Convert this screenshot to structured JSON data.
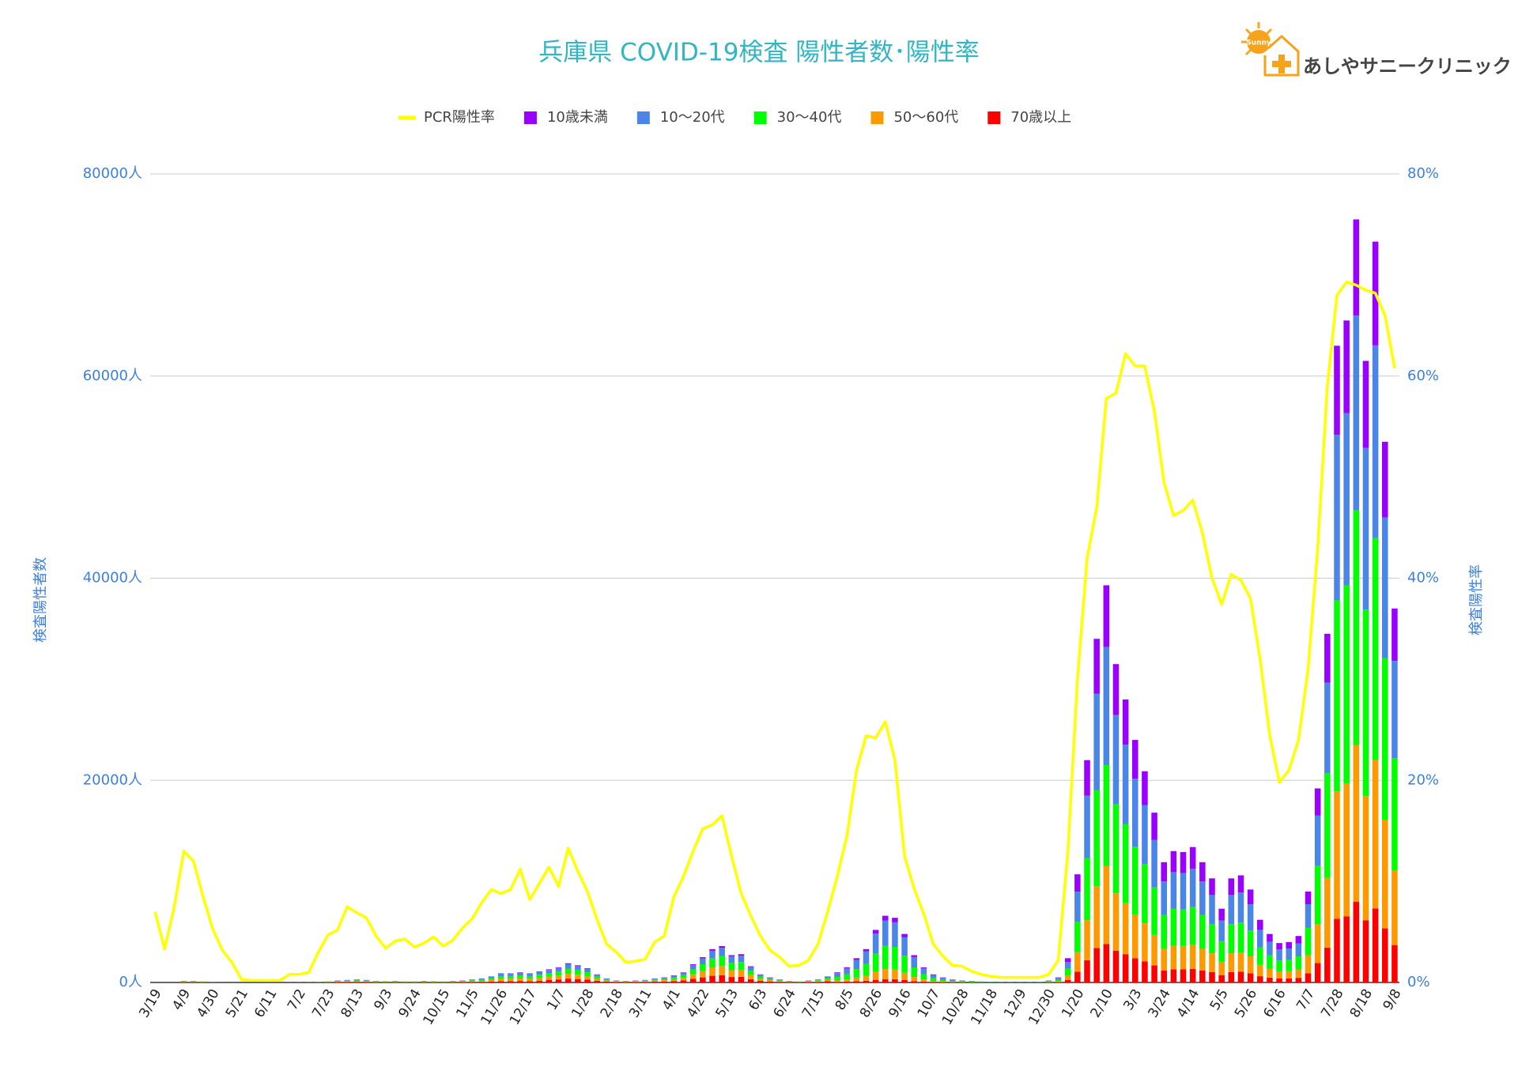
{
  "logo_mark": "Sunny",
  "logo_text": "あしやサニークリニック",
  "chart_data": {
    "type": "bar",
    "stacked": true,
    "grid": true,
    "legend": "top",
    "title": "兵庫県  COVID-19検査  陽性者数･陽性率",
    "ylabel": "検査陽性者数",
    "y2label": "検査陽性率",
    "ylim": [
      0,
      80000
    ],
    "yticks": [
      {
        "value": 0,
        "label": "0人"
      },
      {
        "value": 20000,
        "label": "20000人"
      },
      {
        "value": 40000,
        "label": "40000人"
      },
      {
        "value": 60000,
        "label": "60000人"
      },
      {
        "value": 80000,
        "label": "80000人"
      }
    ],
    "y2lim": [
      0,
      80
    ],
    "y2ticks": [
      {
        "value": 0,
        "label": "0%"
      },
      {
        "value": 20,
        "label": "20%"
      },
      {
        "value": 40,
        "label": "40%"
      },
      {
        "value": 60,
        "label": "60%"
      },
      {
        "value": 80,
        "label": "80%"
      }
    ],
    "categories": [
      "3/19",
      null,
      null,
      "4/9",
      null,
      null,
      "4/30",
      null,
      null,
      "5/21",
      null,
      null,
      "6/11",
      null,
      null,
      "7/2",
      null,
      null,
      "7/23",
      null,
      null,
      "8/13",
      null,
      null,
      "9/3",
      null,
      null,
      "9/24",
      null,
      null,
      "10/15",
      null,
      null,
      "11/5",
      null,
      null,
      "11/26",
      null,
      null,
      "12/17",
      null,
      null,
      "1/7",
      null,
      null,
      "1/28",
      null,
      null,
      "2/18",
      null,
      null,
      "3/11",
      null,
      null,
      "4/1",
      null,
      null,
      "4/22",
      null,
      null,
      "5/13",
      null,
      null,
      "6/3",
      null,
      null,
      "6/24",
      null,
      null,
      "7/15",
      null,
      null,
      "8/5",
      null,
      null,
      "8/26",
      null,
      null,
      "9/16",
      null,
      null,
      "10/7",
      null,
      null,
      "10/28",
      null,
      null,
      "11/18",
      null,
      null,
      "12/9",
      null,
      null,
      "12/30",
      null,
      null,
      "1/20",
      null,
      null,
      "2/10",
      null,
      null,
      "3/3",
      null,
      null,
      "3/24",
      null,
      null,
      "4/14",
      null,
      null,
      "5/5",
      null,
      null,
      "5/26",
      null,
      null,
      "6/16",
      null,
      null,
      "7/7",
      null,
      null,
      "7/28",
      null,
      null,
      "8/18",
      null,
      null,
      "9/8"
    ],
    "series": [
      {
        "name": "PCR陽性率",
        "color": "#ffff00",
        "type": "line",
        "axis": "y2",
        "values": [
          7.0,
          3.3,
          7.5,
          13.0,
          12.0,
          8.5,
          5.3,
          3.2,
          2.0,
          0.3,
          0.2,
          0.2,
          0.2,
          0.2,
          0.8,
          0.8,
          1.0,
          3.0,
          4.7,
          5.2,
          7.5,
          6.9,
          6.4,
          4.6,
          3.4,
          4.1,
          4.3,
          3.5,
          3.9,
          4.5,
          3.6,
          4.2,
          5.4,
          6.3,
          7.9,
          9.2,
          8.8,
          9.2,
          11.2,
          8.2,
          9.8,
          11.4,
          9.5,
          13.3,
          11.0,
          9.0,
          6.2,
          3.8,
          3.0,
          2.0,
          2.1,
          2.3,
          4.0,
          4.6,
          8.5,
          10.5,
          13.0,
          15.2,
          15.6,
          16.5,
          12.5,
          8.8,
          6.6,
          4.6,
          3.2,
          2.5,
          1.6,
          1.7,
          2.2,
          3.8,
          7.0,
          10.5,
          14.5,
          21.0,
          24.4,
          24.2,
          25.8,
          22.0,
          12.5,
          9.3,
          6.8,
          3.8,
          2.6,
          1.7,
          1.6,
          1.1,
          0.8,
          0.6,
          0.5,
          0.5,
          0.5,
          0.5,
          0.5,
          0.8,
          2.2,
          13,
          30,
          42,
          47,
          57.8,
          58.3,
          62.2,
          61,
          61,
          56.5,
          49.5,
          46.2,
          46.7,
          47.7,
          44.5,
          40,
          37.4,
          40.4,
          39.8,
          38,
          32,
          24.5,
          19.8,
          21,
          24,
          31,
          43,
          59,
          68,
          69.3,
          69,
          68.5,
          68.2,
          66,
          60.8
        ]
      },
      {
        "name": "10歳未満",
        "color": "#9900ff",
        "values": [
          0,
          0,
          0,
          8,
          8,
          5,
          2,
          1,
          0,
          0,
          0,
          0,
          0,
          0,
          1,
          1,
          2,
          3,
          5,
          10,
          12,
          15,
          12,
          8,
          6,
          8,
          5,
          5,
          8,
          6,
          5,
          8,
          10,
          15,
          20,
          30,
          45,
          45,
          50,
          45,
          55,
          65,
          75,
          95,
          85,
          70,
          40,
          20,
          10,
          8,
          10,
          12,
          20,
          25,
          35,
          50,
          90,
          125,
          165,
          180,
          135,
          140,
          80,
          40,
          25,
          15,
          8,
          5,
          10,
          15,
          30,
          70,
          105,
          168,
          231,
          364,
          462,
          448,
          336,
          189,
          105,
          56,
          35,
          21,
          14,
          10,
          7,
          6,
          4,
          4,
          4,
          4,
          4,
          14,
          35,
          384,
          1712,
          3520,
          5440,
          6100,
          5040,
          4480,
          3840,
          3344,
          2688,
          1904,
          2080,
          2064,
          2144,
          1904,
          1648,
          1168,
          1648,
          1696,
          1472,
          992,
          768,
          624,
          640,
          736,
          1260,
          2688,
          4830,
          8820,
          9170,
          9500,
          8610,
          10262,
          7490,
          5180
        ]
      },
      {
        "name": "10〜20代",
        "color": "#4a86e8",
        "values": [
          0,
          0,
          0,
          38,
          38,
          25,
          8,
          2,
          1,
          1,
          1,
          1,
          1,
          1,
          2,
          5,
          8,
          12,
          25,
          50,
          63,
          75,
          63,
          38,
          30,
          38,
          25,
          25,
          38,
          30,
          25,
          38,
          50,
          75,
          100,
          150,
          225,
          225,
          250,
          225,
          275,
          300,
          345,
          437,
          391,
          322,
          184,
          92,
          46,
          34,
          46,
          58,
          92,
          115,
          161,
          230,
          414,
          575,
          759,
          828,
          621,
          644,
          368,
          184,
          115,
          69,
          34,
          23,
          46,
          69,
          138,
          380,
          570,
          912,
          1254,
          1976,
          2508,
          2432,
          1824,
          1026,
          570,
          304,
          190,
          114,
          76,
          57,
          38,
          30,
          19,
          19,
          19,
          19,
          23,
          76,
          190,
          672,
          2996,
          6160,
          9520,
          11700,
          8820,
          7840,
          6720,
          5852,
          4704,
          3332,
          3640,
          3612,
          3752,
          3332,
          2884,
          2044,
          2884,
          2968,
          2576,
          1736,
          1344,
          1092,
          1120,
          1288,
          2340,
          4992,
          8970,
          16380,
          17030,
          19300,
          15990,
          19058,
          13910,
          9620
        ]
      },
      {
        "name": "30〜40代",
        "color": "#00ff00",
        "values": [
          0,
          0,
          0,
          45,
          45,
          30,
          9,
          3,
          2,
          2,
          2,
          2,
          2,
          2,
          3,
          6,
          9,
          15,
          30,
          60,
          75,
          90,
          75,
          45,
          36,
          45,
          30,
          30,
          45,
          36,
          30,
          45,
          60,
          90,
          120,
          180,
          270,
          270,
          300,
          270,
          330,
          350,
          405,
          513,
          459,
          378,
          216,
          108,
          54,
          41,
          54,
          67,
          108,
          135,
          189,
          270,
          486,
          675,
          891,
          972,
          729,
          756,
          432,
          216,
          135,
          81,
          41,
          27,
          54,
          81,
          162,
          350,
          525,
          840,
          1155,
          1820,
          2310,
          2240,
          1680,
          945,
          525,
          280,
          175,
          105,
          70,
          53,
          35,
          28,
          17,
          17,
          17,
          17,
          21,
          70,
          175,
          672,
          2996,
          6160,
          9520,
          10000,
          8820,
          7840,
          6720,
          5852,
          4704,
          3332,
          3640,
          3612,
          3752,
          3332,
          2884,
          2044,
          2884,
          2968,
          2576,
          1736,
          1344,
          1092,
          1120,
          1288,
          2700,
          5760,
          10350,
          18900,
          19650,
          23200,
          18450,
          21990,
          16050,
          11100
        ]
      },
      {
        "name": "50〜60代",
        "color": "#ff9900",
        "values": [
          0,
          0,
          0,
          37,
          37,
          25,
          7,
          2,
          1,
          1,
          1,
          1,
          1,
          1,
          2,
          5,
          7,
          12,
          25,
          50,
          62,
          75,
          62,
          37,
          30,
          37,
          25,
          25,
          37,
          30,
          25,
          37,
          50,
          75,
          100,
          150,
          225,
          225,
          250,
          225,
          275,
          325,
          375,
          475,
          425,
          350,
          200,
          100,
          50,
          37,
          50,
          63,
          100,
          125,
          175,
          250,
          450,
          625,
          825,
          900,
          675,
          700,
          400,
          200,
          125,
          75,
          37,
          25,
          50,
          75,
          150,
          150,
          225,
          360,
          495,
          780,
          990,
          960,
          720,
          405,
          225,
          120,
          75,
          45,
          30,
          22,
          15,
          12,
          7,
          7,
          7,
          7,
          9,
          30,
          75,
          432,
          1926,
          3960,
          6120,
          7700,
          5670,
          5040,
          4320,
          3762,
          3024,
          2142,
          2340,
          2322,
          2412,
          2142,
          1854,
          1314,
          1854,
          1908,
          1656,
          1116,
          864,
          702,
          720,
          828,
          1800,
          3840,
          6900,
          12600,
          13100,
          15500,
          12300,
          14660,
          10700,
          7400
        ]
      },
      {
        "name": "70歳以上",
        "color": "#ff0000",
        "values": [
          0,
          0,
          0,
          22,
          22,
          15,
          4,
          2,
          1,
          1,
          1,
          1,
          1,
          1,
          2,
          3,
          4,
          8,
          15,
          30,
          38,
          45,
          38,
          22,
          18,
          22,
          15,
          15,
          22,
          18,
          15,
          22,
          30,
          45,
          60,
          90,
          135,
          135,
          150,
          135,
          165,
          260,
          300,
          380,
          340,
          280,
          160,
          80,
          40,
          30,
          40,
          50,
          80,
          100,
          140,
          200,
          360,
          500,
          660,
          720,
          540,
          560,
          320,
          160,
          100,
          60,
          30,
          20,
          40,
          60,
          120,
          50,
          75,
          120,
          165,
          260,
          330,
          320,
          240,
          135,
          75,
          40,
          25,
          15,
          10,
          8,
          5,
          4,
          3,
          3,
          3,
          3,
          3,
          10,
          25,
          240,
          1070,
          2200,
          3400,
          3800,
          3150,
          2800,
          2400,
          2090,
          1680,
          1190,
          1300,
          1290,
          1340,
          1190,
          1030,
          730,
          1030,
          1060,
          920,
          620,
          480,
          390,
          400,
          460,
          900,
          1920,
          3450,
          6300,
          6550,
          8000,
          6150,
          7330,
          5350,
          3700
        ]
      }
    ]
  }
}
